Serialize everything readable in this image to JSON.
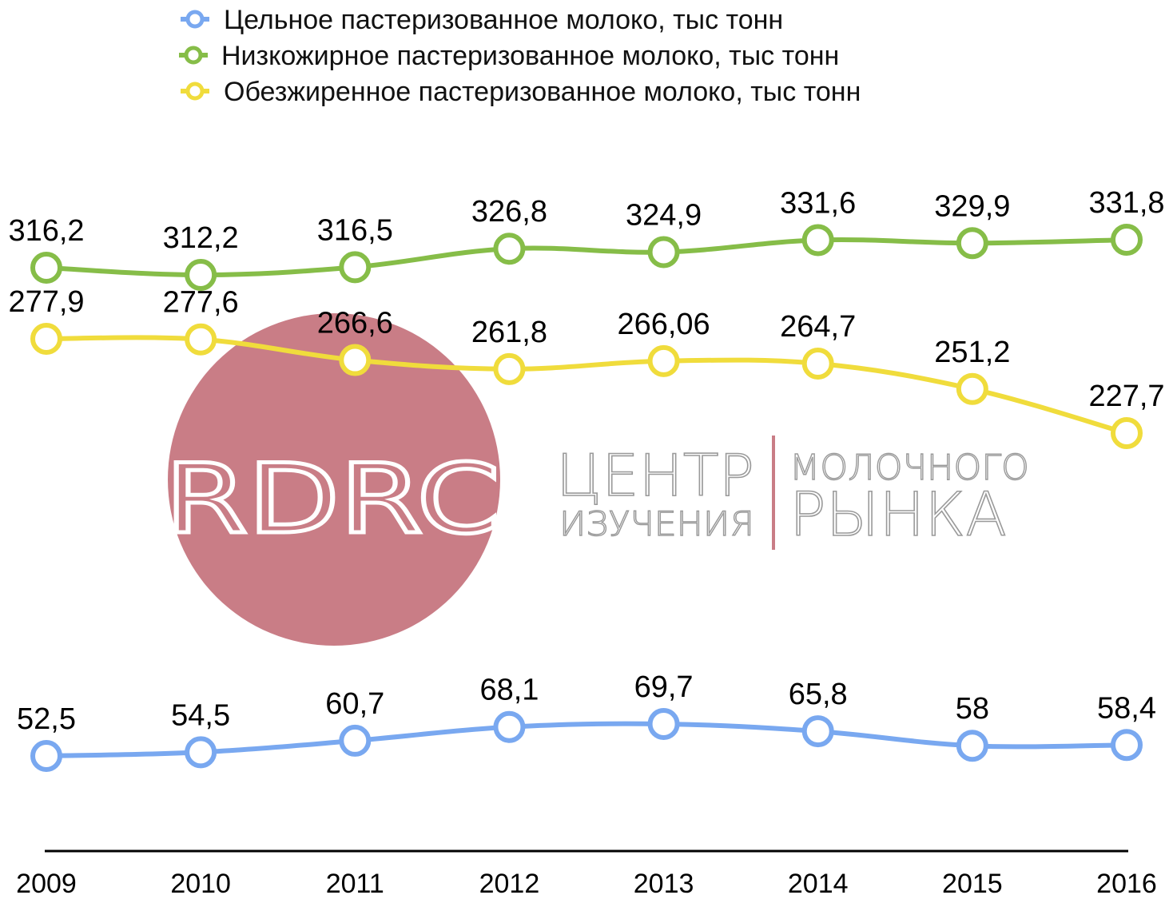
{
  "chart_data": {
    "type": "line",
    "categories": [
      "2009",
      "2010",
      "2011",
      "2012",
      "2013",
      "2014",
      "2015",
      "2016"
    ],
    "series": [
      {
        "name": "Цельное пастеризованное молоко, тыс тонн",
        "color": "#79a8f0",
        "values": [
          52.5,
          54.5,
          60.7,
          68.1,
          69.7,
          65.8,
          58,
          58.4
        ],
        "labels": [
          "52,5",
          "54,5",
          "60,7",
          "68,1",
          "69,7",
          "65,8",
          "58",
          "58,4"
        ]
      },
      {
        "name": "Низкожирное пастеризованное молоко, тыс тонн",
        "color": "#86bd48",
        "values": [
          316.2,
          312.2,
          316.5,
          326.8,
          324.9,
          331.6,
          329.9,
          331.8
        ],
        "labels": [
          "316,2",
          "312,2",
          "316,5",
          "326,8",
          "324,9",
          "331,6",
          "329,9",
          "331,8"
        ]
      },
      {
        "name": "Обезжиренное пастеризованное молоко, тыс тонн",
        "color": "#f0dc3c",
        "values": [
          277.9,
          277.6,
          266.6,
          261.8,
          266.06,
          264.7,
          251.2,
          227.7
        ],
        "labels": [
          "277,9",
          "277,6",
          "266,6",
          "261,8",
          "266,06",
          "264,7",
          "251,2",
          "227,7"
        ]
      }
    ],
    "title": "",
    "xlabel": "",
    "ylabel": "",
    "grid": false,
    "legend_position": "top-left"
  },
  "watermark": {
    "logo_text": "RDRC",
    "line1_left": "ЦЕНТР",
    "line2_left": "ИЗУЧЕНИЯ",
    "line1_right": "МОЛОЧНОГО",
    "line2_right": "РЫНКА",
    "logo_color": "#c97d86",
    "text_color": "#9a9a9a"
  }
}
